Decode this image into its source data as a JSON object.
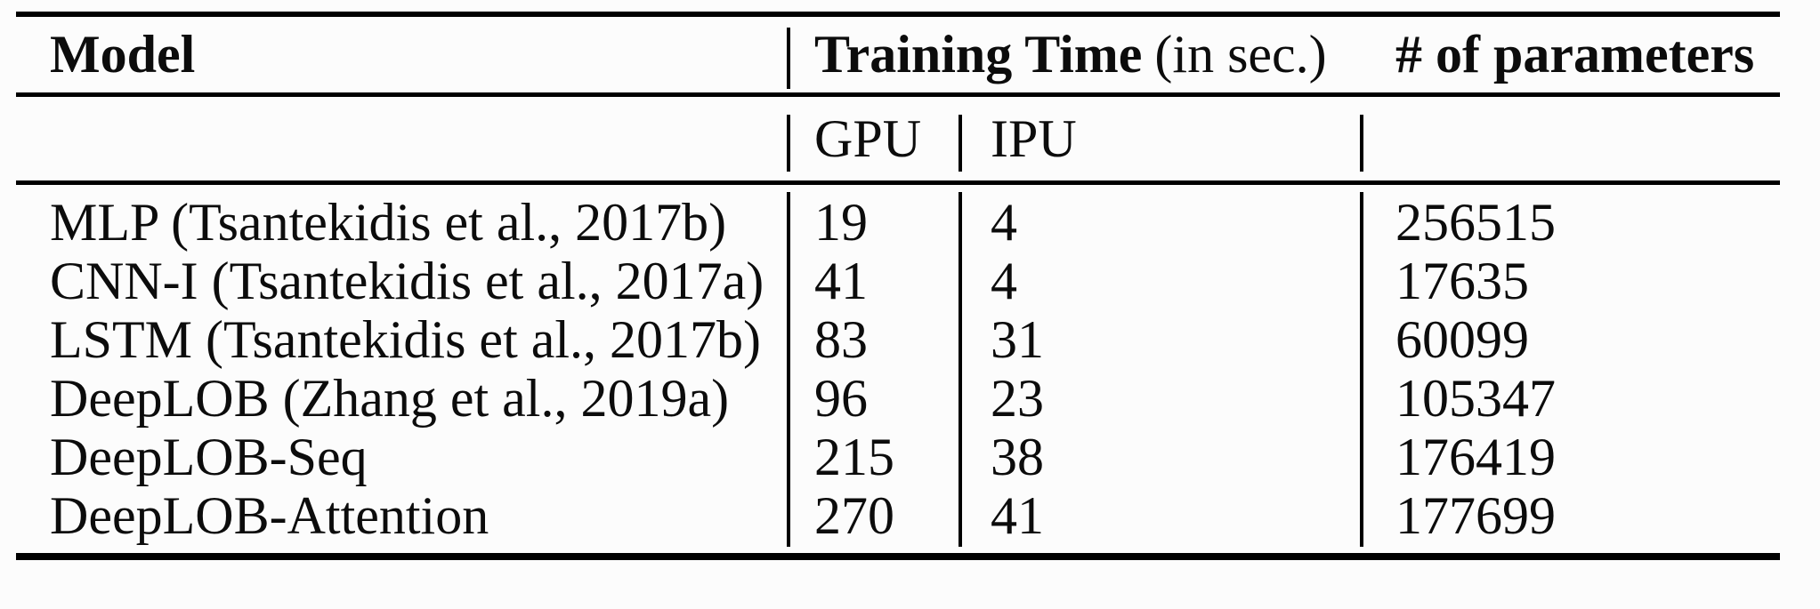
{
  "table": {
    "header": {
      "model": "Model",
      "training_time": "Training Time",
      "training_time_unit": "(in sec.)",
      "parameters": "# of parameters"
    },
    "subheader": {
      "gpu": "GPU",
      "ipu": "IPU"
    },
    "rows": [
      {
        "model": "MLP (Tsantekidis et al., 2017b)",
        "gpu": "19",
        "ipu": "4",
        "params": "256515"
      },
      {
        "model": "CNN-I (Tsantekidis et al., 2017a)",
        "gpu": "41",
        "ipu": "4",
        "params": "17635"
      },
      {
        "model": "LSTM (Tsantekidis et al., 2017b)",
        "gpu": "83",
        "ipu": "31",
        "params": "60099"
      },
      {
        "model": "DeepLOB (Zhang et al., 2019a)",
        "gpu": "96",
        "ipu": "23",
        "params": "105347"
      },
      {
        "model": "DeepLOB-Seq",
        "gpu": "215",
        "ipu": "38",
        "params": "176419"
      },
      {
        "model": "DeepLOB-Attention",
        "gpu": "270",
        "ipu": "41",
        "params": "177699"
      }
    ],
    "colors": {
      "rule": "#000000",
      "text": "#0c0c0c",
      "background": "#fcfcfc"
    }
  }
}
